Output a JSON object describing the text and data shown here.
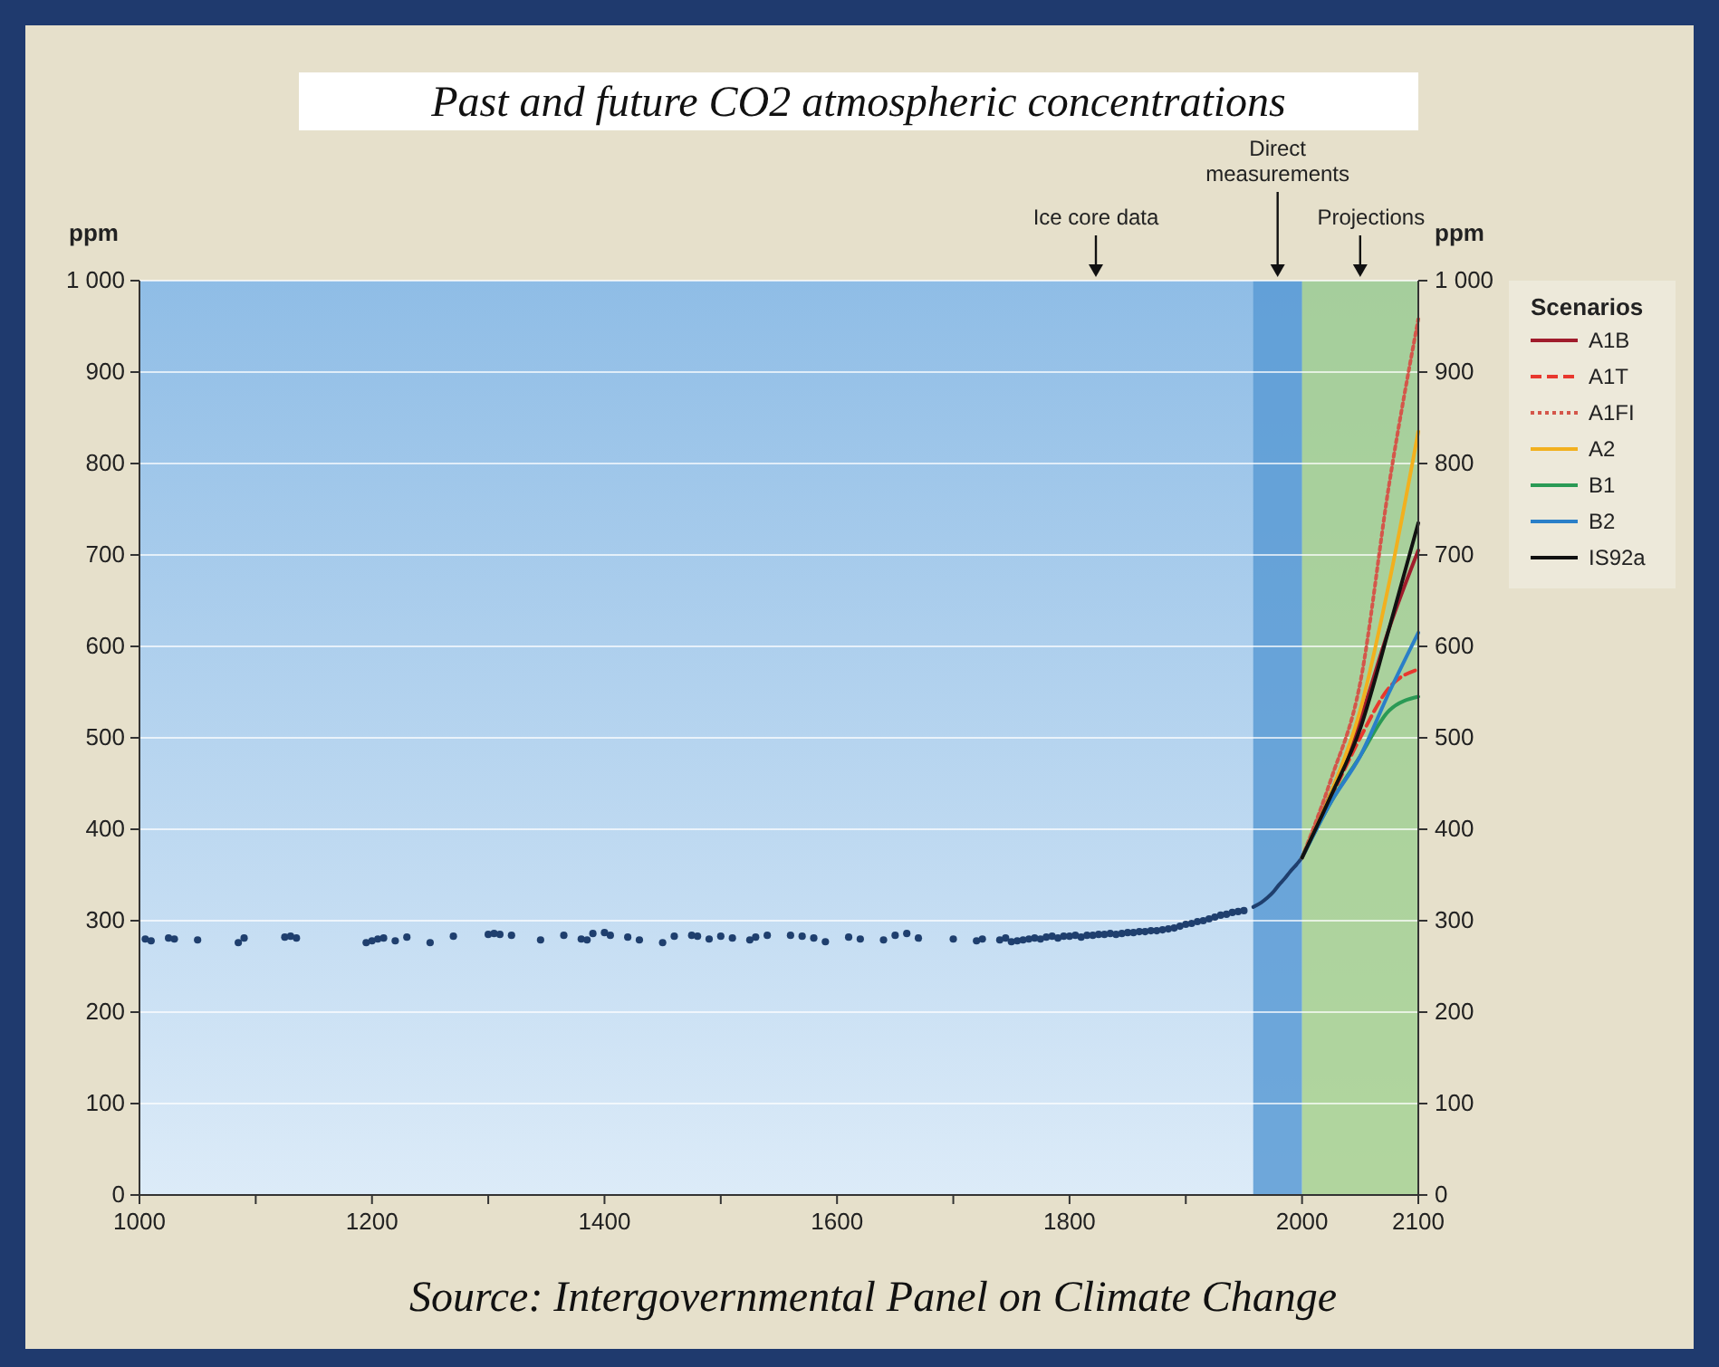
{
  "chart_data": {
    "type": "line",
    "title": "Past and future CO2 atmospheric concentrations",
    "ylabel": "ppm",
    "y2label": "ppm",
    "legend_title": "Scenarios",
    "legend": "right",
    "grid": "y",
    "xlim": [
      1000,
      2100
    ],
    "xticks": [
      1000,
      {
        "value": 1100,
        "label": null
      },
      1200,
      {
        "value": 1300,
        "label": null
      },
      1400,
      {
        "value": 1500,
        "label": null
      },
      1600,
      {
        "value": 1700,
        "label": null
      },
      1800,
      {
        "value": 1900,
        "label": null
      },
      2000,
      2100
    ],
    "ylim": [
      0,
      1000
    ],
    "yticks": [
      0,
      100,
      200,
      300,
      400,
      500,
      600,
      700,
      800,
      900,
      {
        "value": 1000,
        "label": "1 000"
      }
    ],
    "y2lim": [
      0,
      1000
    ],
    "y2ticks": [
      0,
      100,
      200,
      300,
      400,
      500,
      600,
      700,
      800,
      900,
      {
        "value": 1000,
        "label": "1 000"
      }
    ],
    "bands": [
      {
        "axis": "x",
        "from": 1958,
        "to": 2000,
        "label": "Direct measurements",
        "color": "#5b9bd5"
      },
      {
        "axis": "x",
        "from": 2000,
        "to": 2100,
        "label": "Projections",
        "color": "#a9d18e"
      }
    ],
    "annotations": [
      "Ice core data",
      "Source: Intergovernmental Panel on Climate Change"
    ],
    "series": [
      {
        "type": "scatter",
        "color": "#1f3f6e",
        "marker": "circle",
        "x": [
          1005,
          1010,
          1025,
          1030,
          1050,
          1085,
          1090,
          1125,
          1130,
          1135,
          1195,
          1200,
          1205,
          1210,
          1220,
          1230,
          1250,
          1270,
          1300,
          1305,
          1310,
          1320,
          1345,
          1365,
          1380,
          1385,
          1390,
          1400,
          1405,
          1420,
          1430,
          1450,
          1460,
          1475,
          1480,
          1490,
          1500,
          1510,
          1525,
          1530,
          1540,
          1560,
          1570,
          1580,
          1590,
          1610,
          1620,
          1640,
          1650,
          1660,
          1670,
          1700,
          1720,
          1725,
          1740,
          1745,
          1750,
          1755,
          1760,
          1765,
          1770,
          1775,
          1780,
          1785,
          1790,
          1795,
          1800,
          1805,
          1810,
          1815,
          1820,
          1825,
          1830,
          1835,
          1840,
          1845,
          1850,
          1855,
          1860,
          1865,
          1870,
          1875,
          1880,
          1885,
          1890,
          1895,
          1900,
          1905,
          1910,
          1915,
          1920,
          1925,
          1930,
          1935,
          1940,
          1945,
          1950
        ],
        "values": [
          280,
          278,
          281,
          280,
          279,
          276,
          281,
          282,
          283,
          281,
          276,
          278,
          280,
          281,
          278,
          282,
          276,
          283,
          285,
          286,
          285,
          284,
          279,
          284,
          280,
          279,
          286,
          287,
          284,
          282,
          279,
          276,
          283,
          284,
          283,
          280,
          283,
          281,
          279,
          282,
          284,
          284,
          283,
          281,
          277,
          282,
          280,
          279,
          284,
          286,
          281,
          280,
          278,
          280,
          279,
          281,
          277,
          278,
          279,
          280,
          281,
          280,
          282,
          283,
          281,
          283,
          283,
          284,
          282,
          284,
          284,
          285,
          285,
          286,
          285,
          286,
          287,
          287,
          288,
          288,
          289,
          289,
          290,
          291,
          292,
          294,
          296,
          297,
          299,
          300,
          302,
          304,
          306,
          307,
          309,
          310,
          311
        ]
      },
      {
        "color": "#1f3f6e",
        "x": [
          1958,
          1965,
          1970,
          1975,
          1980,
          1985,
          1990,
          1995,
          2000
        ],
        "values": [
          315,
          320,
          325,
          331,
          339,
          346,
          354,
          361,
          369
        ]
      },
      {
        "type": "line",
        "name": "A1B",
        "color": "#a01c2c",
        "line_style": "solid",
        "x": [
          2000,
          2025,
          2050,
          2075,
          2100
        ],
        "values": [
          369,
          440,
          520,
          620,
          705
        ]
      },
      {
        "type": "line",
        "name": "A1T",
        "color": "#e8382e",
        "line_style": "dashed",
        "x": [
          2000,
          2025,
          2050,
          2075,
          2100
        ],
        "values": [
          369,
          435,
          500,
          555,
          575
        ]
      },
      {
        "type": "line",
        "name": "A1FI",
        "color": "#d4564a",
        "line_style": "dotted",
        "x": [
          2000,
          2025,
          2050,
          2075,
          2100
        ],
        "values": [
          369,
          455,
          560,
          778,
          958
        ]
      },
      {
        "type": "line",
        "name": "A2",
        "color": "#f2b01e",
        "line_style": "solid",
        "x": [
          2000,
          2025,
          2050,
          2075,
          2100
        ],
        "values": [
          369,
          440,
          530,
          670,
          835
        ]
      },
      {
        "type": "line",
        "name": "B1",
        "color": "#2a9a55",
        "line_style": "solid",
        "x": [
          2000,
          2025,
          2050,
          2075,
          2100
        ],
        "values": [
          369,
          430,
          480,
          530,
          545
        ]
      },
      {
        "type": "line",
        "name": "B2",
        "color": "#2a7fc8",
        "line_style": "solid",
        "x": [
          2000,
          2025,
          2050,
          2075,
          2100
        ],
        "values": [
          369,
          430,
          480,
          550,
          615
        ]
      },
      {
        "type": "line",
        "name": "IS92a",
        "color": "#111111",
        "line_style": "solid",
        "x": [
          2000,
          2025,
          2050,
          2075,
          2100
        ],
        "values": [
          369,
          437,
          510,
          620,
          735
        ]
      }
    ]
  }
}
